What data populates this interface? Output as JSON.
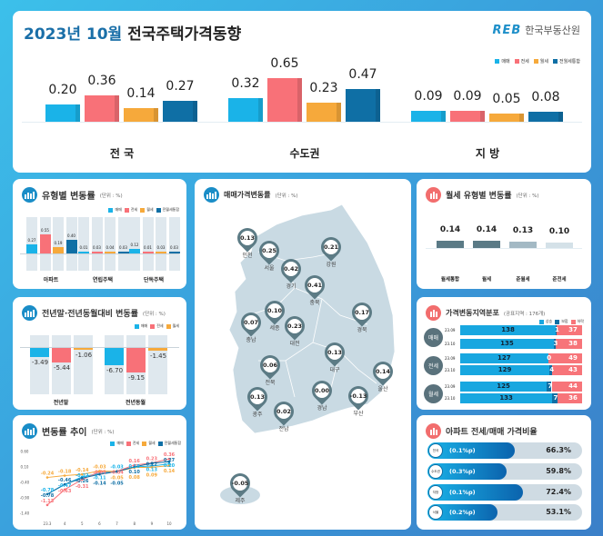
{
  "colors": {
    "매매": "#1ab3e8",
    "전세": "#f87178",
    "월세": "#f6a93b",
    "통합": "#0f6fa5",
    "rise": "#18a7e0",
    "flat": "#0f6fa5",
    "fall": "#f77479"
  },
  "header": {
    "title_date": "2023년 10월",
    "title_main": "전국주택가격동향",
    "logo_mark": "REB",
    "logo_text": "한국부동산원"
  },
  "legend4": [
    "매매",
    "전세",
    "월세",
    "전월세통합"
  ],
  "legend3": [
    "매매",
    "전세",
    "월세"
  ],
  "chart_data": [
    {
      "type": "bar",
      "title": "",
      "categories": [
        "전 국",
        "수도권",
        "지 방"
      ],
      "series": [
        {
          "name": "매매",
          "values": [
            0.2,
            0.32,
            0.09
          ]
        },
        {
          "name": "전세",
          "values": [
            0.36,
            0.65,
            0.09
          ]
        },
        {
          "name": "월세",
          "values": [
            0.14,
            0.23,
            0.05
          ]
        },
        {
          "name": "전월세통합",
          "values": [
            0.27,
            0.47,
            0.08
          ]
        }
      ]
    },
    {
      "type": "bar",
      "title": "유형별 변동률",
      "unit": "(단위 : %)",
      "categories": [
        "아파트",
        "연립주택",
        "단독주택"
      ],
      "series": [
        {
          "name": "매매",
          "values": [
            0.27,
            0.01,
            0.12
          ]
        },
        {
          "name": "전세",
          "values": [
            0.55,
            0.03,
            0.01
          ]
        },
        {
          "name": "월세",
          "values": [
            0.19,
            0.04,
            0.03
          ]
        },
        {
          "name": "전월세통합",
          "values": [
            0.4,
            0.03,
            0.03
          ]
        }
      ]
    },
    {
      "type": "bar",
      "title": "전년말·전년동월대비 변동률",
      "unit": "(단위 : %)",
      "categories": [
        "전년말",
        "전년동월"
      ],
      "series": [
        {
          "name": "매매",
          "values": [
            -3.49,
            -6.7
          ]
        },
        {
          "name": "전세",
          "values": [
            -5.44,
            -9.15
          ]
        },
        {
          "name": "월세",
          "values": [
            -1.06,
            -1.45
          ]
        }
      ]
    },
    {
      "type": "line",
      "title": "변동률 추이",
      "unit": "(단위 : %)",
      "x": [
        "23.3",
        "4",
        "5",
        "6",
        "7",
        "8",
        "9",
        "10"
      ],
      "yticks": [
        "0.60",
        "0.10",
        "-0.40",
        "-0.90",
        "-1.40"
      ],
      "ylim": [
        -1.4,
        0.6
      ],
      "series": [
        {
          "name": "매매",
          "values": [
            -0.78,
            -0.47,
            -0.22,
            -0.11,
            -0.03,
            0.1,
            0.13,
            0.2
          ]
        },
        {
          "name": "전세",
          "values": [
            -1.13,
            -0.63,
            -0.31,
            -0.05,
            -0.04,
            0.16,
            0.23,
            0.36
          ]
        },
        {
          "name": "월세",
          "values": [
            -0.24,
            -0.18,
            -0.14,
            -0.03,
            -0.05,
            0.08,
            0.09,
            0.14
          ]
        },
        {
          "name": "전월세통합",
          "values": [
            -0.78,
            -0.46,
            -0.26,
            -0.14,
            -0.05,
            0.1,
            0.22,
            0.27
          ]
        }
      ]
    },
    {
      "type": "map",
      "title": "매매가격변동률",
      "unit": "(단위 : %)",
      "regions": [
        {
          "name": "인천",
          "value": "0.13"
        },
        {
          "name": "서울",
          "value": "0.25"
        },
        {
          "name": "경기",
          "value": "0.42"
        },
        {
          "name": "강원",
          "value": "0.21"
        },
        {
          "name": "충북",
          "value": "0.41"
        },
        {
          "name": "경북",
          "value": "0.17"
        },
        {
          "name": "세종",
          "value": "0.10"
        },
        {
          "name": "대전",
          "value": "0.23"
        },
        {
          "name": "충남",
          "value": "0.07"
        },
        {
          "name": "대구",
          "value": "0.13"
        },
        {
          "name": "전북",
          "value": "0.06"
        },
        {
          "name": "울산",
          "value": "0.14"
        },
        {
          "name": "경남",
          "value": "0.00"
        },
        {
          "name": "광주",
          "value": "0.13"
        },
        {
          "name": "전남",
          "value": "0.02"
        },
        {
          "name": "부산",
          "value": "-0.13"
        },
        {
          "name": "제주",
          "value": "-0.05"
        }
      ]
    },
    {
      "type": "bar",
      "title": "월세 유형별 변동률",
      "unit": "(단위 : %)",
      "categories": [
        "월세통합",
        "월세",
        "준월세",
        "준전세"
      ],
      "values": [
        0.14,
        0.14,
        0.13,
        0.1
      ],
      "bar_colors": [
        "#5a7a86",
        "#5a7a86",
        "#a3b9c4",
        "#d4e1e8"
      ]
    },
    {
      "type": "stacked-bar",
      "title": "가격변동지역분포",
      "unit": "(공표지역 : 176개)",
      "legend": [
        "상승",
        "보합",
        "하락"
      ],
      "groups": [
        {
          "label": "매매",
          "rows": [
            {
              "period": "23.09",
              "values": [
                138,
                1,
                37
              ]
            },
            {
              "period": "23.10",
              "values": [
                135,
                3,
                38
              ]
            }
          ]
        },
        {
          "label": "전세",
          "rows": [
            {
              "period": "23.09",
              "values": [
                127,
                0,
                49
              ]
            },
            {
              "period": "23.10",
              "values": [
                129,
                4,
                43
              ]
            }
          ]
        },
        {
          "label": "월세",
          "rows": [
            {
              "period": "23.09",
              "values": [
                125,
                7,
                44
              ]
            },
            {
              "period": "23.10",
              "values": [
                133,
                7,
                36
              ]
            }
          ]
        }
      ]
    },
    {
      "type": "bar",
      "title": "아파트 전세/매매 가격비율",
      "rows": [
        {
          "region": "전국",
          "change": "(0.1%p)",
          "value": 66.3,
          "display": "66.3%"
        },
        {
          "region": "수도권",
          "change": "(0.3%p)",
          "value": 59.8,
          "display": "59.8%"
        },
        {
          "region": "지방",
          "change": "(0.1%p)",
          "value": 72.4,
          "display": "72.4%"
        },
        {
          "region": "서울",
          "change": "(0.2%p)",
          "value": 53.1,
          "display": "53.1%"
        }
      ]
    }
  ]
}
